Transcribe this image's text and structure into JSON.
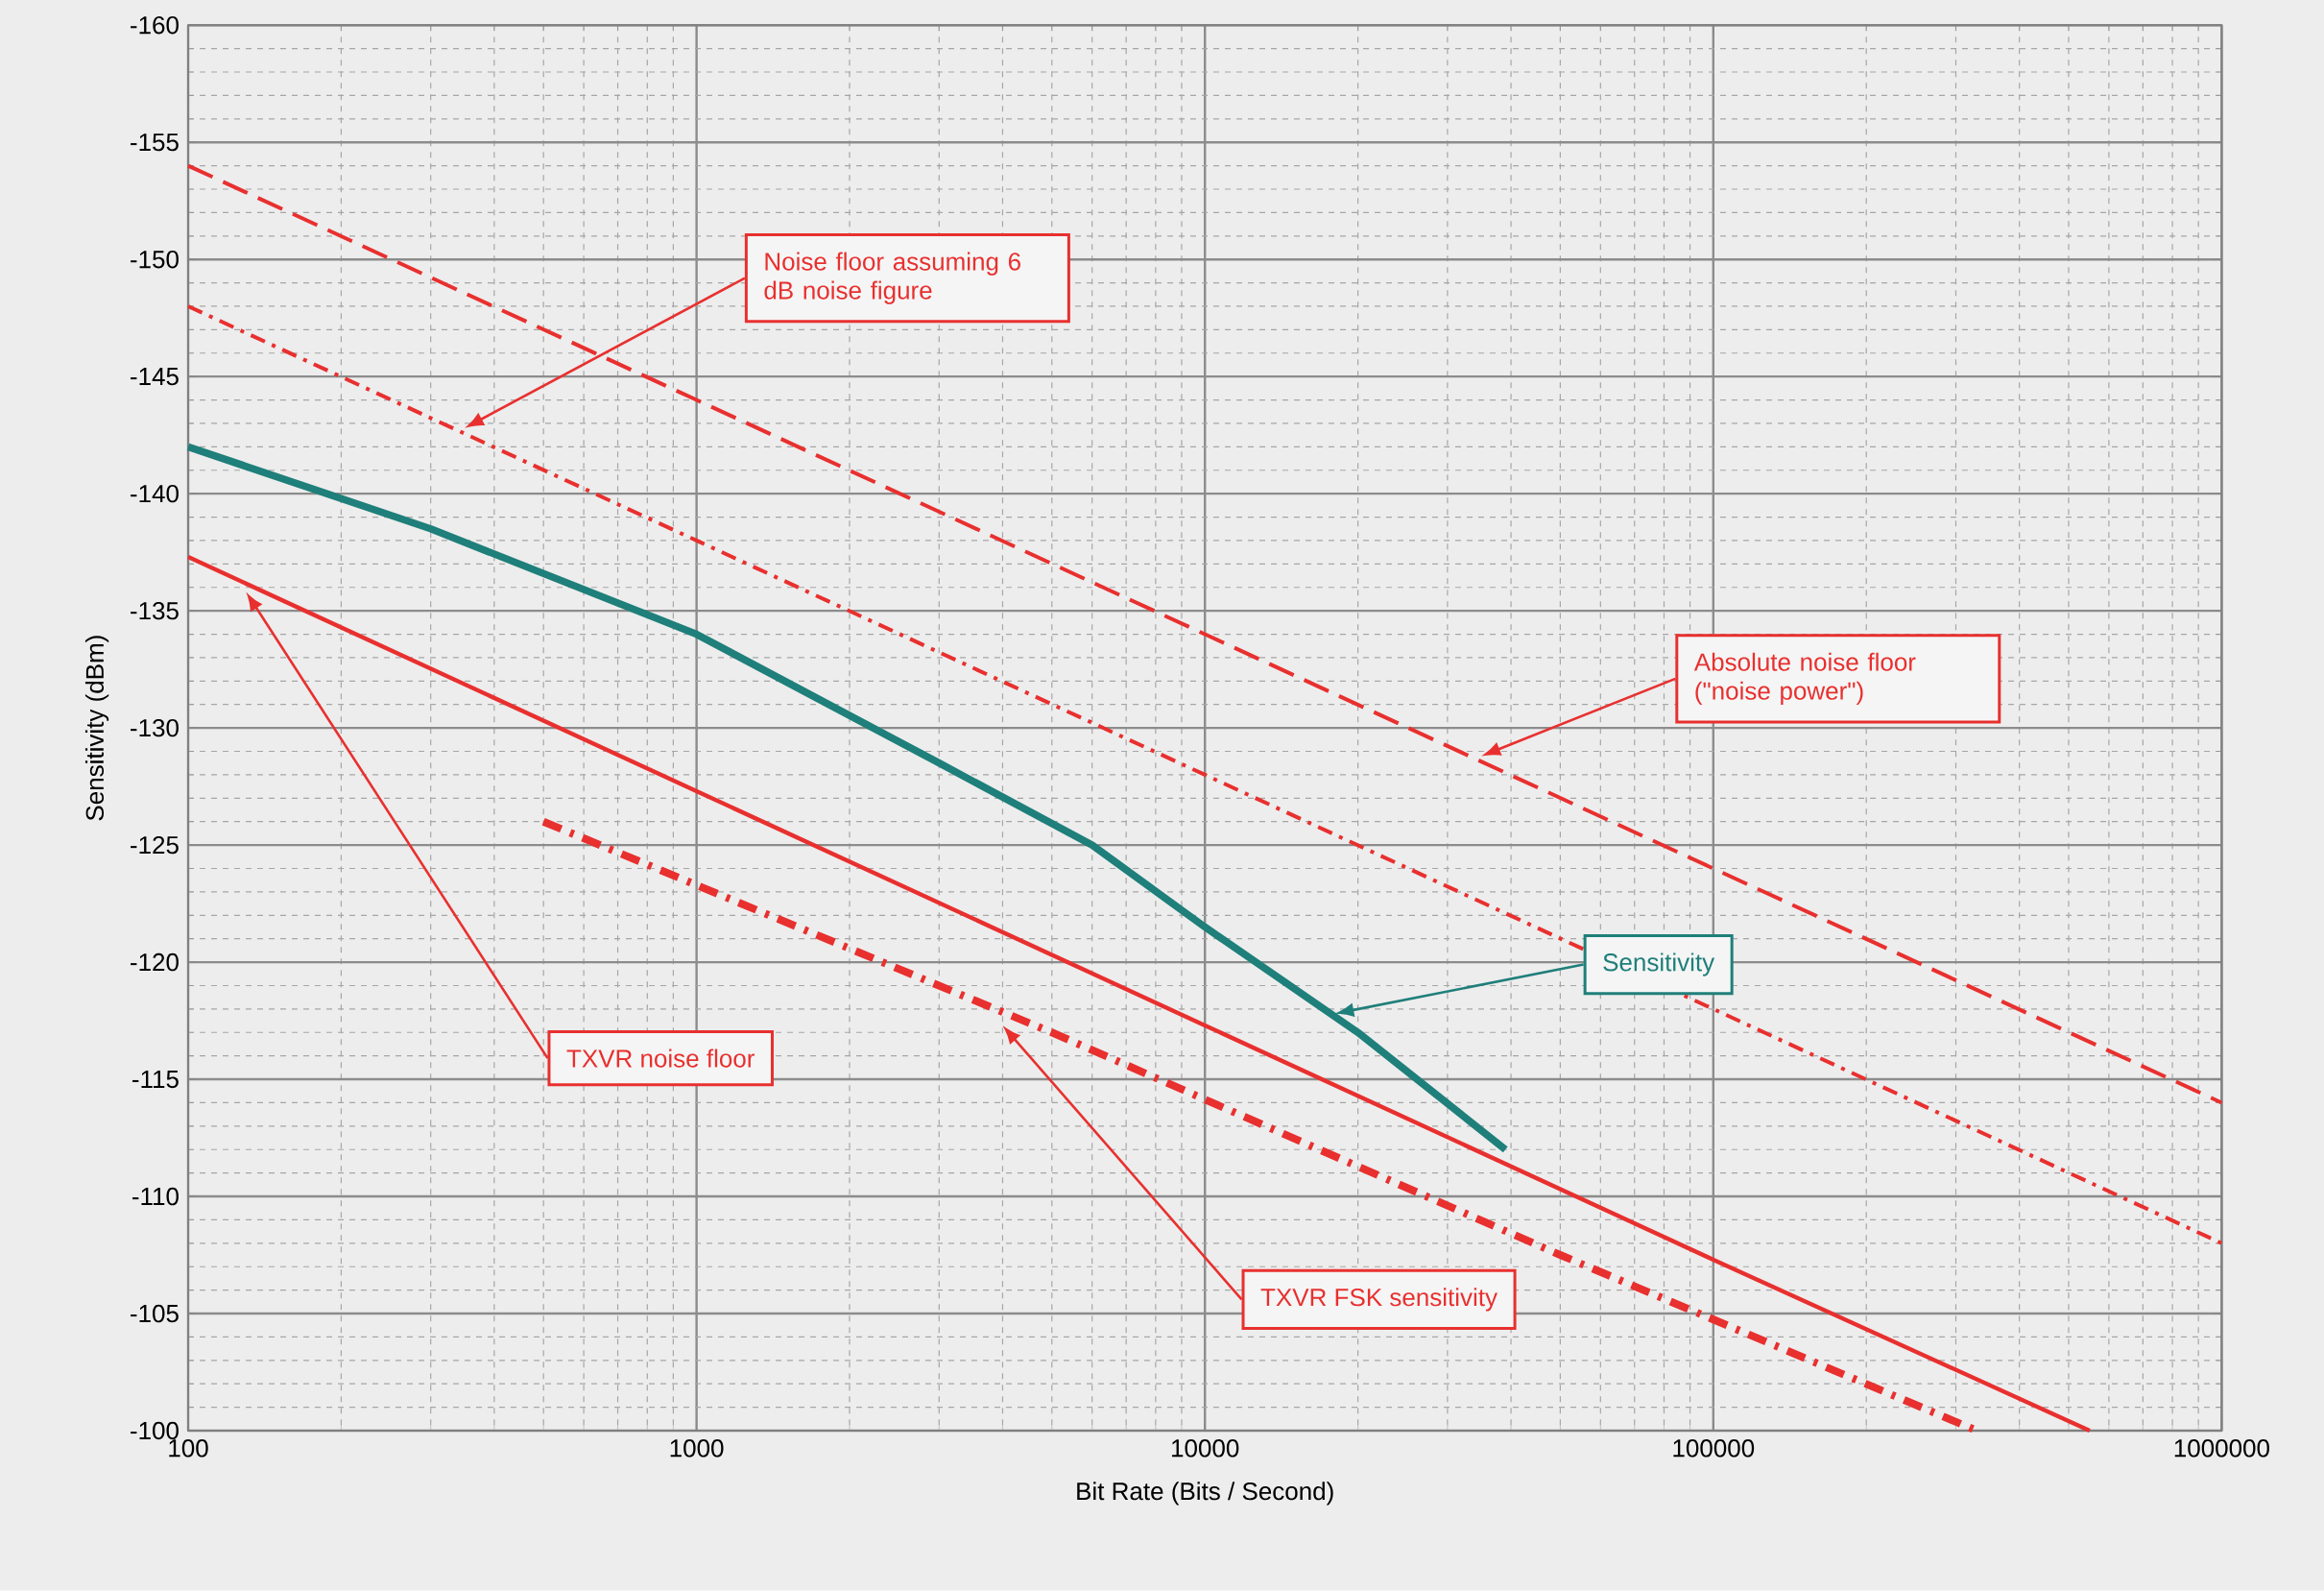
{
  "chart_data": {
    "type": "line",
    "xlabel": "Bit Rate (Bits / Second)",
    "ylabel": "Sensitivity (dBm)",
    "log": "x",
    "grid": true,
    "legend": false,
    "marker": "none",
    "xlim": [
      100,
      1000000
    ],
    "ylim": [
      -100,
      -160
    ],
    "xticks": [
      {
        "value": 100,
        "label": "100"
      },
      {
        "value": 1000,
        "label": "1000"
      },
      {
        "value": 10000,
        "label": "10000"
      },
      {
        "value": 100000,
        "label": "100000"
      },
      {
        "value": 1000000,
        "label": "1000000"
      }
    ],
    "yticks": [
      {
        "value": -160,
        "label": "-160"
      },
      {
        "value": -155,
        "label": "-155"
      },
      {
        "value": -150,
        "label": "-150"
      },
      {
        "value": -145,
        "label": "-145"
      },
      {
        "value": -140,
        "label": "-140"
      },
      {
        "value": -135,
        "label": "-135"
      },
      {
        "value": -130,
        "label": "-130"
      },
      {
        "value": -125,
        "label": "-125"
      },
      {
        "value": -120,
        "label": "-120"
      },
      {
        "value": -115,
        "label": "-115"
      },
      {
        "value": -110,
        "label": "-110"
      },
      {
        "value": -105,
        "label": "-105"
      },
      {
        "value": -100,
        "label": "-100"
      }
    ],
    "series": [
      {
        "name": "Absolute noise floor (\"noise power\")",
        "color": "#e8302f",
        "line_style": "dashed",
        "x": [
          100,
          1000,
          10000,
          100000,
          1000000
        ],
        "values": [
          -154,
          -144,
          -134,
          -124,
          -114
        ]
      },
      {
        "name": "Noise floor assuming 6 dB noise figure",
        "color": "#e8302f",
        "line_style": "dashed",
        "x": [
          100,
          1000,
          10000,
          100000,
          1000000
        ],
        "values": [
          -148,
          -138,
          -128,
          -118,
          -108
        ]
      },
      {
        "name": "Sensitivity",
        "color": "#1f7f7a",
        "line_style": "solid",
        "x": [
          100,
          300,
          1000,
          3000,
          6000,
          10000,
          20000,
          39000
        ],
        "values": [
          -142,
          -138.5,
          -134,
          -128.5,
          -125,
          -121.5,
          -117,
          -112
        ]
      },
      {
        "name": "TXVR noise floor",
        "color": "#e8302f",
        "line_style": "solid",
        "x": [
          100,
          1000,
          10000,
          100000,
          550000
        ],
        "values": [
          -137.3,
          -127.3,
          -117.3,
          -107.3,
          -100
        ]
      },
      {
        "name": "TXVR FSK sensitivity",
        "color": "#e8302f",
        "line_style": "dotted",
        "x": [
          500,
          5000,
          50000,
          330000
        ],
        "values": [
          -126,
          -117,
          -107.5,
          -100
        ]
      }
    ]
  }
}
